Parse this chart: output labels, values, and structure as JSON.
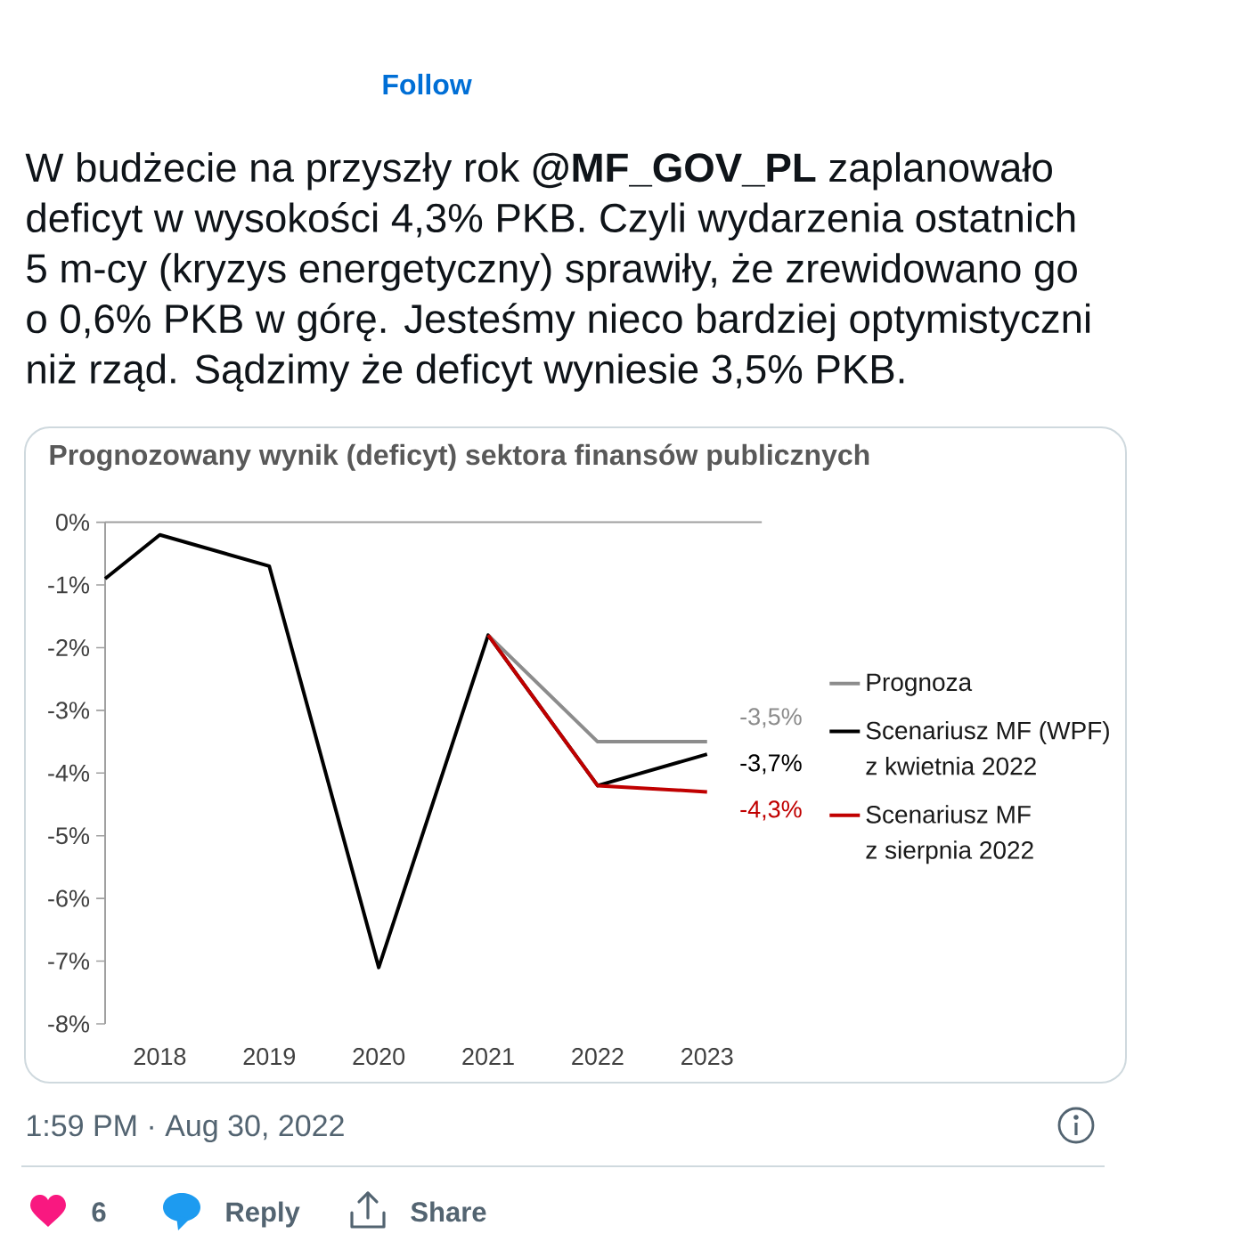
{
  "chart_data": {
    "type": "line",
    "title": "Prognozowany wynik (deficyt) sektora finansów publicznych",
    "series": [
      {
        "name": "Prognoza",
        "color": "#8c8c8c",
        "x": [
          2021,
          2022,
          2023
        ],
        "values": [
          -1.8,
          -3.5,
          -3.5
        ],
        "value_labels": [
          null,
          null,
          "-3,5%"
        ]
      },
      {
        "name": "Scenariusz MF (WPF)\nz kwietnia 2022",
        "color": "#000000",
        "x": [
          2017.5,
          2018,
          2019,
          2020,
          2021,
          2022,
          2023
        ],
        "values": [
          -0.9,
          -0.2,
          -0.7,
          -7.1,
          -1.8,
          -4.2,
          -3.7
        ],
        "value_labels": [
          null,
          null,
          null,
          null,
          null,
          null,
          "-3,7%"
        ]
      },
      {
        "name": "Scenariusz MF\nz sierpnia 2022",
        "color": "#c00000",
        "x": [
          2021,
          2022,
          2023
        ],
        "values": [
          -1.8,
          -4.2,
          -4.3
        ],
        "value_labels": [
          null,
          null,
          "-4,3%"
        ]
      }
    ],
    "xlim": [
      2017.5,
      2023.5
    ],
    "xticks": [
      2018,
      2019,
      2020,
      2021,
      2022,
      2023
    ],
    "ylim": [
      -8,
      0
    ],
    "yticks": [
      {
        "value": 0,
        "label": "0%"
      },
      {
        "value": -1,
        "label": "-1%"
      },
      {
        "value": -2,
        "label": "-2%"
      },
      {
        "value": -3,
        "label": "-3%"
      },
      {
        "value": -4,
        "label": "-4%"
      },
      {
        "value": -5,
        "label": "-5%"
      },
      {
        "value": -6,
        "label": "-6%"
      },
      {
        "value": -7,
        "label": "-7%"
      },
      {
        "value": -8,
        "label": "-8%"
      }
    ],
    "legend": "right",
    "marker": "none",
    "annotations": [
      "W budżecie na przyszły rok **@MF_GOV_PL** zaplanowało\ndeficyt w wysokości 4,3% PKB. Czyli wydarzenia ostatnich\n5 m-cy (kryzys energetyczny) sprawiły, że zrewidowano go\no 0,6% PKB w górę. Jesteśmy nieco bardziej optymistyczni\nniż rząd. Sądzimy że deficyt wyniesie 3,5% PKB.",
      "Follow",
      "1:59 PM · Aug 30, 2022",
      "6",
      "Reply",
      "Share"
    ]
  }
}
